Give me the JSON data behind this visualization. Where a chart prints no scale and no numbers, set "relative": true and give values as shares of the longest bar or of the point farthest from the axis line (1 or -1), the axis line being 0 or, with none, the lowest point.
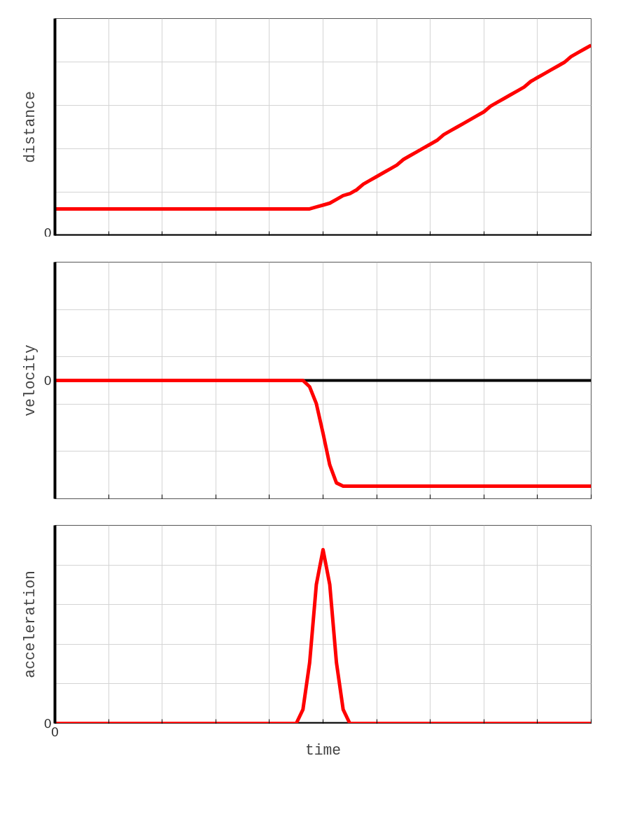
{
  "chart_data": [
    {
      "type": "line",
      "relative": true,
      "ylabel": "distance",
      "grid": true,
      "categories": [
        null,
        null,
        null,
        null,
        null,
        null,
        null,
        null,
        null,
        null,
        null,
        null,
        null,
        null,
        null,
        null,
        null,
        null,
        null,
        null,
        null,
        null,
        null,
        null,
        null,
        null,
        null,
        null,
        null,
        null,
        null,
        null,
        null,
        null,
        null,
        null,
        null,
        null,
        null,
        null,
        null,
        null,
        null,
        null,
        null,
        null,
        null,
        null,
        null,
        null,
        null,
        null,
        null,
        null,
        null,
        null,
        null,
        null,
        null,
        null,
        null,
        null,
        null,
        null,
        null,
        null,
        null,
        null,
        null,
        null,
        null,
        null,
        null,
        null,
        null,
        null,
        null,
        null,
        null,
        null,
        null
      ],
      "series": [
        {
          "color": "#ff0000",
          "values": [
            0.14,
            0.14,
            0.14,
            0.14,
            0.14,
            0.14,
            0.14,
            0.14,
            0.14,
            0.14,
            0.14,
            0.14,
            0.14,
            0.14,
            0.14,
            0.14,
            0.14,
            0.14,
            0.14,
            0.14,
            0.14,
            0.14,
            0.14,
            0.14,
            0.14,
            0.14,
            0.14,
            0.14,
            0.14,
            0.14,
            0.14,
            0.14,
            0.14,
            0.14,
            0.14,
            0.14,
            0.14,
            0.14,
            0.14,
            0.15,
            0.16,
            0.17,
            0.19,
            0.21,
            0.22,
            0.24,
            0.27,
            0.29,
            0.31,
            0.33,
            0.35,
            0.37,
            0.4,
            0.42,
            0.44,
            0.46,
            0.48,
            0.5,
            0.53,
            0.55,
            0.57,
            0.59,
            0.61,
            0.63,
            0.65,
            0.68,
            0.7,
            0.72,
            0.74,
            0.76,
            0.78,
            0.81,
            0.83,
            0.85,
            0.87,
            0.89,
            0.91,
            0.94,
            0.96,
            0.98,
            1.0
          ]
        }
      ],
      "ref_lines": [
        {
          "axis": "y",
          "value": 0,
          "label": "0",
          "color": "#000000"
        }
      ]
    },
    {
      "type": "line",
      "relative": true,
      "ylabel": "velocity",
      "grid": true,
      "categories": [
        null,
        null,
        null,
        null,
        null,
        null,
        null,
        null,
        null,
        null,
        null,
        null,
        null,
        null,
        null,
        null,
        null,
        null,
        null,
        null,
        null,
        null,
        null,
        null,
        null,
        null,
        null,
        null,
        null,
        null,
        null,
        null,
        null,
        null,
        null,
        null,
        null,
        null,
        null,
        null,
        null,
        null,
        null,
        null,
        null,
        null,
        null,
        null,
        null,
        null,
        null,
        null,
        null,
        null,
        null,
        null,
        null,
        null,
        null,
        null,
        null,
        null,
        null,
        null,
        null,
        null,
        null,
        null,
        null,
        null,
        null,
        null,
        null,
        null,
        null,
        null,
        null,
        null,
        null,
        null,
        null
      ],
      "series": [
        {
          "color": "#ff0000",
          "values": [
            0,
            0,
            0,
            0,
            0,
            0,
            0,
            0,
            0,
            0,
            0,
            0,
            0,
            0,
            0,
            0,
            0,
            0,
            0,
            0,
            0,
            0,
            0,
            0,
            0,
            0,
            0,
            0,
            0,
            0,
            0,
            0,
            0,
            0,
            0,
            0,
            0,
            0,
            -0.06,
            -0.22,
            -0.5,
            -0.8,
            -0.97,
            -1,
            -1,
            -1,
            -1,
            -1,
            -1,
            -1,
            -1,
            -1,
            -1,
            -1,
            -1,
            -1,
            -1,
            -1,
            -1,
            -1,
            -1,
            -1,
            -1,
            -1,
            -1,
            -1,
            -1,
            -1,
            -1,
            -1,
            -1,
            -1,
            -1,
            -1,
            -1,
            -1,
            -1,
            -1,
            -1,
            -1,
            -1
          ]
        }
      ],
      "ref_lines": [
        {
          "axis": "y",
          "value": 0,
          "label": "0",
          "color": "#000000"
        }
      ]
    },
    {
      "type": "line",
      "relative": true,
      "ylabel": "acceleration",
      "xlabel": "time",
      "grid": true,
      "annotations": [
        "0"
      ],
      "categories": [
        null,
        null,
        null,
        null,
        null,
        null,
        null,
        null,
        null,
        null,
        null,
        null,
        null,
        null,
        null,
        null,
        null,
        null,
        null,
        null,
        null,
        null,
        null,
        null,
        null,
        null,
        null,
        null,
        null,
        null,
        null,
        null,
        null,
        null,
        null,
        null,
        null,
        null,
        null,
        null,
        null,
        null,
        null,
        null,
        null,
        null,
        null,
        null,
        null,
        null,
        null,
        null,
        null,
        null,
        null,
        null,
        null,
        null,
        null,
        null,
        null,
        null,
        null,
        null,
        null,
        null,
        null,
        null,
        null,
        null,
        null,
        null,
        null,
        null,
        null,
        null,
        null,
        null,
        null,
        null,
        null
      ],
      "series": [
        {
          "color": "#ff0000",
          "values": [
            0,
            0,
            0,
            0,
            0,
            0,
            0,
            0,
            0,
            0,
            0,
            0,
            0,
            0,
            0,
            0,
            0,
            0,
            0,
            0,
            0,
            0,
            0,
            0,
            0,
            0,
            0,
            0,
            0,
            0,
            0,
            0,
            0,
            0,
            0,
            0,
            0,
            0.08,
            0.35,
            0.8,
            1,
            0.8,
            0.35,
            0.08,
            0,
            0,
            0,
            0,
            0,
            0,
            0,
            0,
            0,
            0,
            0,
            0,
            0,
            0,
            0,
            0,
            0,
            0,
            0,
            0,
            0,
            0,
            0,
            0,
            0,
            0,
            0,
            0,
            0,
            0,
            0,
            0,
            0,
            0,
            0,
            0,
            0
          ]
        }
      ],
      "ref_lines": [
        {
          "axis": "y",
          "value": 0,
          "label": "0",
          "color": "#000000"
        }
      ]
    }
  ]
}
